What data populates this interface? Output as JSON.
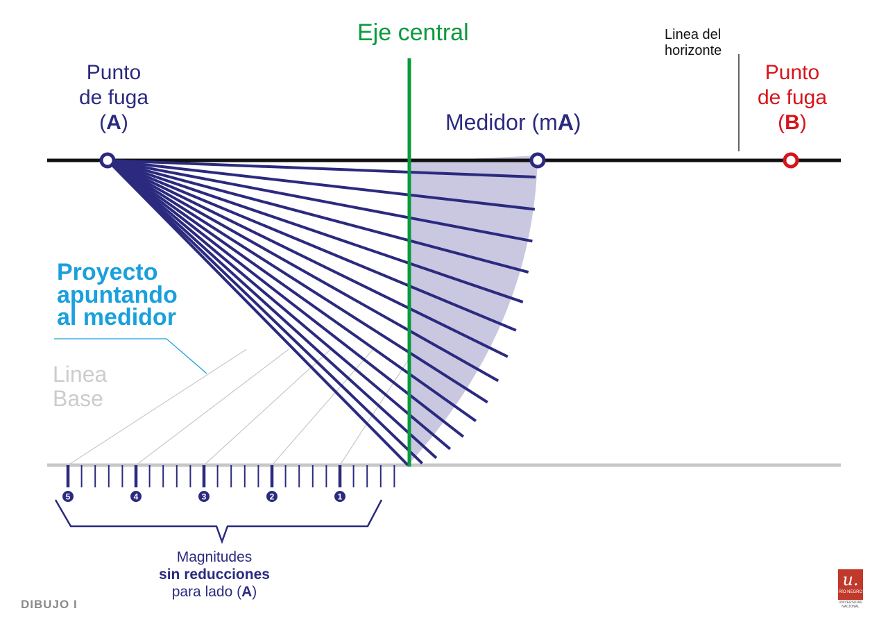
{
  "colors": {
    "navy": "#2b2a7f",
    "green": "#0a9a3c",
    "red": "#d7141a",
    "cyan": "#1aa0dd",
    "fan_fill": "#c9c8e0",
    "base_line": "#c8c8c8",
    "horizon_line": "#111111"
  },
  "labels": {
    "eje_central": "Eje central",
    "linea_horizonte_1": "Linea del",
    "linea_horizonte_2": "horizonte",
    "punto_fuga_a_1": "Punto",
    "punto_fuga_a_2": "de fuga",
    "punto_fuga_a_open": "(",
    "punto_fuga_a_letter": "A",
    "punto_fuga_a_close": ")",
    "punto_fuga_b_1": "Punto",
    "punto_fuga_b_2": "de fuga",
    "punto_fuga_b_open": "(",
    "punto_fuga_b_letter": "B",
    "punto_fuga_b_close": ")",
    "medidor_prefix": "Medidor (m",
    "medidor_letter": "A",
    "medidor_close": ")",
    "proyecto_1": "Proyecto",
    "proyecto_2": "apuntando",
    "proyecto_3": "al medidor",
    "linea_base_1": "Linea",
    "linea_base_2": "Base",
    "magnitudes_1": "Magnitudes",
    "magnitudes_2": "sin reducciones",
    "magnitudes_3_prefix": "para lado  (",
    "magnitudes_3_letter": "A",
    "magnitudes_3_close": ")",
    "footer": "DIBUJO I"
  },
  "scale": {
    "major_marks": [
      "5",
      "4",
      "3",
      "2",
      "1"
    ],
    "divisions_per_unit": 5,
    "units": 5
  },
  "logo": {
    "mark": "u.",
    "text": "RÍO NEGRO",
    "sub_1": "UNIVERSIDAD",
    "sub_2": "NACIONAL"
  }
}
